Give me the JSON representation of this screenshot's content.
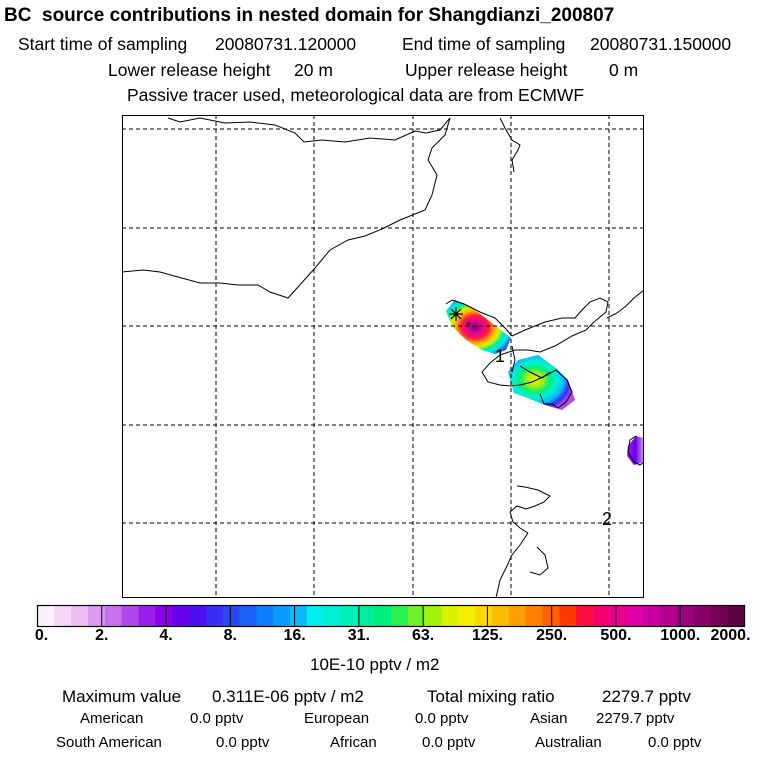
{
  "header": {
    "title": "BC  source contributions in nested domain for Shangdianzi_200807",
    "start_label": "Start time of sampling",
    "start_value": "20080731.120000",
    "end_label": "End time of sampling",
    "end_value": "20080731.150000",
    "lower_label": "Lower release height",
    "lower_value": "20 m",
    "upper_label": "Upper release height",
    "upper_value": "0 m",
    "tracer_note": "Passive tracer used, meteorological data are from ECMWF"
  },
  "map": {
    "site_labels": [
      "1",
      "2"
    ],
    "colors": {
      "coast": "#000000",
      "grid": "#000000"
    }
  },
  "colorbar": {
    "tick_labels": [
      "0.",
      "2.",
      "4.",
      "8.",
      "16.",
      "31.",
      "63.",
      "125.",
      "250.",
      "500.",
      "1000.",
      "2000."
    ],
    "unit_label": "10E-10 pptv / m2",
    "colors": [
      "#fdf0fd",
      "#f6d6f8",
      "#eebaf2",
      "#d99af0",
      "#c773ee",
      "#b048ec",
      "#9a1eea",
      "#8a00e8",
      "#6a00ec",
      "#4d10f0",
      "#3a2df4",
      "#2a48f7",
      "#1a62fa",
      "#0d7ffd",
      "#0a9dfe",
      "#09bafe",
      "#00f0f0",
      "#00f0d8",
      "#00f0bb",
      "#00ef9c",
      "#00ef7a",
      "#2bf052",
      "#6ff029",
      "#a6f00e",
      "#d8f200",
      "#f6ee00",
      "#ffd800",
      "#ffbd00",
      "#ffa000",
      "#ff8000",
      "#ff6000",
      "#ff3a00",
      "#ff0d40",
      "#f4006f",
      "#e9008d",
      "#de00a4",
      "#c900a2",
      "#b3008f",
      "#9d007c",
      "#870068",
      "#720055",
      "#5e0046"
    ]
  },
  "stats": {
    "max_label": "Maximum value",
    "max_value": "0.311E-06 pptv / m2",
    "total_label": "Total mixing ratio",
    "total_value": "2279.7 pptv",
    "regions": [
      {
        "name": "American",
        "value": "0.0 pptv"
      },
      {
        "name": "European",
        "value": "0.0 pptv"
      },
      {
        "name": "Asian",
        "value": "2279.7 pptv"
      },
      {
        "name": "South American",
        "value": "0.0 pptv"
      },
      {
        "name": "African",
        "value": "0.0 pptv"
      },
      {
        "name": "Australian",
        "value": "0.0 pptv"
      }
    ]
  }
}
